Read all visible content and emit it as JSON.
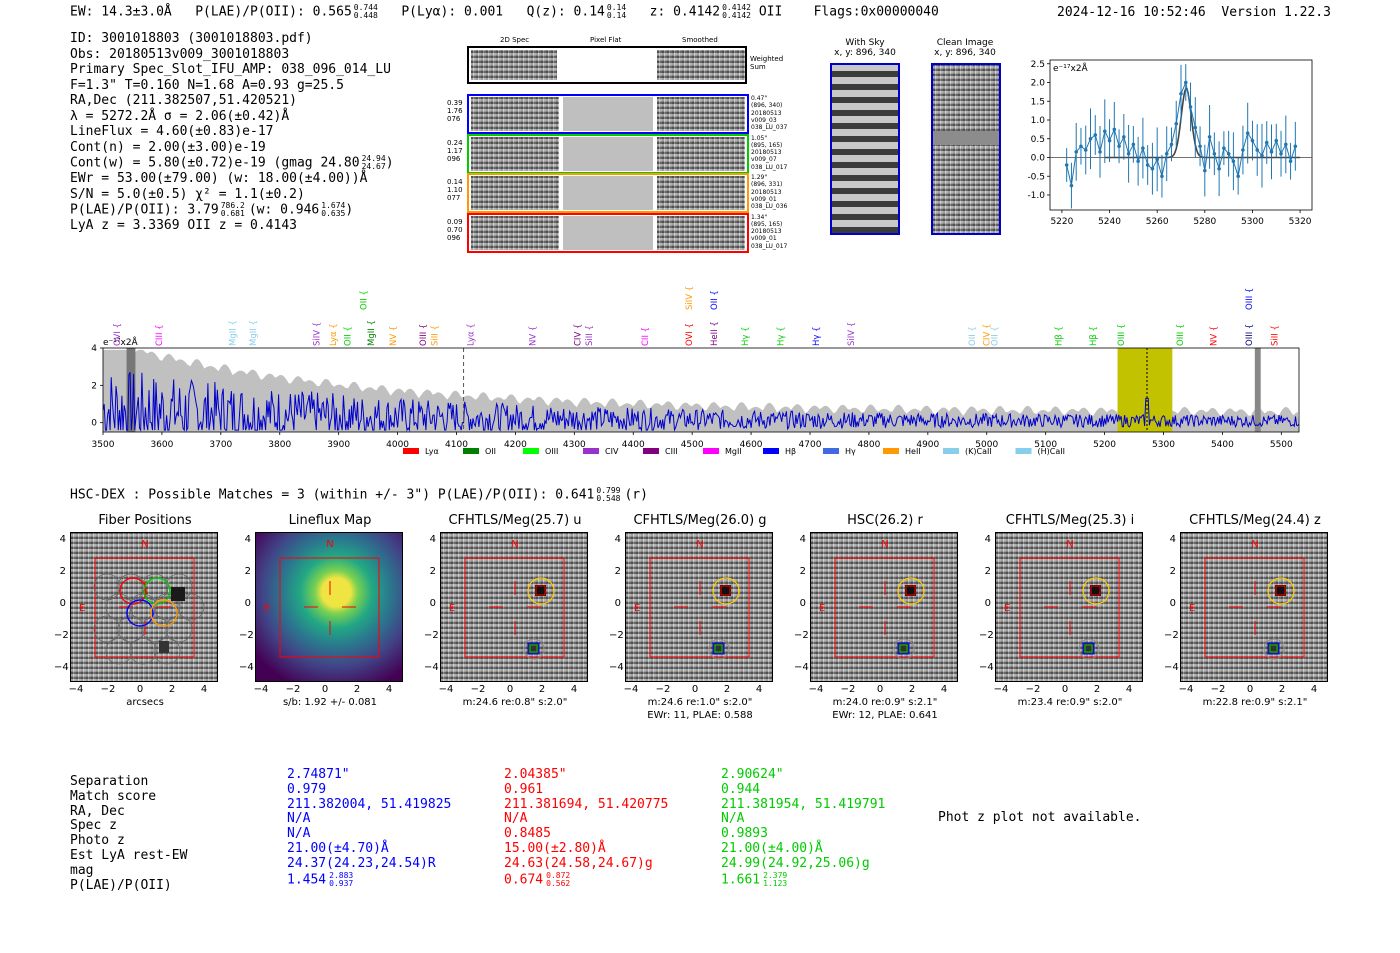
{
  "header": {
    "ew": "EW: 14.3±3.0Å",
    "plae": "P(LAE)/P(OII): 0.565",
    "plae_hi": "0.744",
    "plae_lo": "0.448",
    "plya": "P(Lyα): 0.001",
    "qz": "Q(z): 0.14",
    "qz_hi": "0.14",
    "qz_lo": "0.14",
    "z": "z: 0.4142",
    "z_hi": "0.4142",
    "z_lo": "0.4142",
    "z_line": "OII",
    "flags": "Flags:0x00000040",
    "timestamp": "2024-12-16 10:52:46",
    "version": "Version 1.22.3"
  },
  "info": {
    "l1": "ID: 3001018803 (3001018803.pdf)",
    "l2": "Obs: 20180513v009_3001018803",
    "l3": "Primary Spec_Slot_IFU_AMP: 038_096_014_LU",
    "l4": "F=1.3\"  T=0.160  N=1.68  A=0.93  g=25.5",
    "l5": "RA,Dec (211.382507,51.420521)",
    "l6": "λ = 5272.2Å  σ = 2.06(±0.42)Å",
    "l7": "LineFlux = 4.60(±0.83)e-17",
    "l8": "Cont(n) = 2.00(±3.00)e-19",
    "l9": "Cont(w) = 5.80(±0.72)e-19 (gmag 24.80",
    "l9_hi": "24.94",
    "l9_lo": "24.67",
    "l10": "EWr = 53.00(±79.00) (w: 18.00(±4.00))Å",
    "l11": "S/N = 5.0(±0.5)  χ² = 1.1(±0.2)",
    "l12": "P(LAE)/P(OII): 3.79",
    "l12_hi": "786.2",
    "l12_lo": "0.681",
    "l12b": "(w: 0.946",
    "l12b_hi": "1.674",
    "l12b_lo": "0.635",
    "l13": "LyA z = 3.3369  OII z = 0.4143"
  },
  "spec2d": {
    "headers": [
      "2D Spec",
      "Pixel Flat",
      "Smoothed"
    ],
    "weighted": "Weighted Sum",
    "rows": [
      {
        "left": [
          "0.39",
          "1.76",
          "076"
        ],
        "right": [
          "0.47\"",
          "(896, 340)",
          "20180513",
          "v009_03",
          "038_LU_037"
        ],
        "color": "#0000ff"
      },
      {
        "left": [
          "0.24",
          "1.17",
          "096"
        ],
        "right": [
          "1.05\"",
          "(895, 165)",
          "20180513",
          "v009_07",
          "038_LU_017"
        ],
        "color": "#00cc00"
      },
      {
        "left": [
          "0.14",
          "1.10",
          "077"
        ],
        "right": [
          "1.29\"",
          "(896, 331)",
          "20180513",
          "v009_01",
          "038_LU_036"
        ],
        "color": "#ff9900"
      },
      {
        "left": [
          "0.09",
          "0.70",
          "096"
        ],
        "right": [
          "1.34\"",
          "(895, 165)",
          "20180513",
          "v009_01",
          "038_LU_017"
        ],
        "color": "#ff0000"
      }
    ]
  },
  "sky": {
    "with_sky": "With Sky",
    "with_sky_xy": "x, y: 896, 340",
    "clean": "Clean Image",
    "clean_xy": "x, y: 896, 340"
  },
  "zoom_plot": {
    "unit": "e⁻¹⁷x2Å",
    "yticks": [
      "2.5",
      "2.0",
      "1.5",
      "1.0",
      "0.5",
      "0.0",
      "-0.5",
      "-1.0"
    ],
    "xticks": [
      "5220",
      "5240",
      "5260",
      "5280",
      "5300",
      "5320"
    ],
    "xlim": [
      5215,
      5325
    ],
    "ylim": [
      -1.4,
      2.6
    ],
    "points": [
      [
        5222,
        -0.2
      ],
      [
        5224,
        -0.75
      ],
      [
        5226,
        0.15
      ],
      [
        5228,
        0.3
      ],
      [
        5230,
        0.2
      ],
      [
        5232,
        0.5
      ],
      [
        5234,
        0.6
      ],
      [
        5236,
        0.15
      ],
      [
        5238,
        0.7
      ],
      [
        5240,
        0.45
      ],
      [
        5242,
        0.75
      ],
      [
        5244,
        0.3
      ],
      [
        5246,
        0.55
      ],
      [
        5248,
        0.1
      ],
      [
        5250,
        0.35
      ],
      [
        5252,
        -0.1
      ],
      [
        5254,
        0.25
      ],
      [
        5256,
        -0.2
      ],
      [
        5258,
        -0.3
      ],
      [
        5260,
        -0.05
      ],
      [
        5262,
        -0.5
      ],
      [
        5264,
        0.1
      ],
      [
        5266,
        0.35
      ],
      [
        5268,
        0.9
      ],
      [
        5270,
        1.7
      ],
      [
        5272,
        2.0
      ],
      [
        5274,
        1.35
      ],
      [
        5276,
        0.8
      ],
      [
        5278,
        0.3
      ],
      [
        5280,
        -0.35
      ],
      [
        5282,
        0.55
      ],
      [
        5284,
        0.1
      ],
      [
        5286,
        -0.3
      ],
      [
        5288,
        0.25
      ],
      [
        5290,
        0.1
      ],
      [
        5292,
        -0.1
      ],
      [
        5294,
        -0.5
      ],
      [
        5296,
        0.2
      ],
      [
        5298,
        0.65
      ],
      [
        5300,
        0.45
      ],
      [
        5302,
        0.2
      ],
      [
        5304,
        0.05
      ],
      [
        5306,
        0.4
      ],
      [
        5308,
        0.15
      ],
      [
        5310,
        0.45
      ],
      [
        5312,
        0.1
      ],
      [
        5314,
        0.35
      ],
      [
        5316,
        -0.1
      ],
      [
        5318,
        0.3
      ]
    ],
    "fit_center": 5272.2,
    "fit_sigma": 2.06,
    "fit_amp": 1.85
  },
  "full_spectrum": {
    "unit": "e⁻¹⁷x2Å",
    "yticks": [
      "4",
      "2",
      "0"
    ],
    "xticks": [
      "3500",
      "3600",
      "3700",
      "3800",
      "3900",
      "4000",
      "4100",
      "4200",
      "4300",
      "4400",
      "4500",
      "4600",
      "4700",
      "4800",
      "4900",
      "5000",
      "5100",
      "5200",
      "5300",
      "5400",
      "5500"
    ],
    "xlim": [
      3500,
      5530
    ],
    "ylim": [
      -0.5,
      4
    ],
    "lines": [
      {
        "name": "OVI",
        "wave": 3524,
        "color": "#9932cc",
        "tier": 1
      },
      {
        "name": "CIII",
        "wave": 3595,
        "color": "#ff00ff",
        "tier": 1
      },
      {
        "name": "MgII",
        "wave": 3720,
        "color": "#87ceeb",
        "tier": 1
      },
      {
        "name": "MgII",
        "wave": 3755,
        "color": "#87ceeb",
        "tier": 1
      },
      {
        "name": "SiIV",
        "wave": 3862,
        "color": "#9932cc",
        "tier": 1
      },
      {
        "name": "Lyα",
        "wave": 3890,
        "color": "#ff9900",
        "tier": 1
      },
      {
        "name": "OII",
        "wave": 3915,
        "color": "#00cc00",
        "tier": 1
      },
      {
        "name": "OII",
        "wave": 3942,
        "color": "#00cc00",
        "tier": 2
      },
      {
        "name": "MgII",
        "wave": 3955,
        "color": "#008000",
        "tier": 1
      },
      {
        "name": "NV",
        "wave": 3992,
        "color": "#ff9900",
        "tier": 1
      },
      {
        "name": "OIII",
        "wave": 4043,
        "color": "#800080",
        "tier": 1
      },
      {
        "name": "SiII",
        "wave": 4063,
        "color": "#ff9900",
        "tier": 1
      },
      {
        "name": "Lyα",
        "wave": 4124,
        "color": "#9932cc",
        "tier": 1
      },
      {
        "name": "NV",
        "wave": 4229,
        "color": "#9932cc",
        "tier": 1
      },
      {
        "name": "CIV",
        "wave": 4305,
        "color": "#800080",
        "tier": 1
      },
      {
        "name": "SiII",
        "wave": 4325,
        "color": "#9932cc",
        "tier": 1
      },
      {
        "name": "CII",
        "wave": 4420,
        "color": "#ff00ff",
        "tier": 1
      },
      {
        "name": "OVI",
        "wave": 4495,
        "color": "#ff0000",
        "tier": 1
      },
      {
        "name": "SiIV",
        "wave": 4495,
        "color": "#ff9900",
        "tier": 2
      },
      {
        "name": "HeII",
        "wave": 4537,
        "color": "#800080",
        "tier": 1
      },
      {
        "name": "OII",
        "wave": 4537,
        "color": "#0000ff",
        "tier": 2
      },
      {
        "name": "Hγ",
        "wave": 4590,
        "color": "#00cc00",
        "tier": 1
      },
      {
        "name": "Hγ",
        "wave": 4650,
        "color": "#00cc00",
        "tier": 1
      },
      {
        "name": "Hγ",
        "wave": 4710,
        "color": "#0000ff",
        "tier": 1
      },
      {
        "name": "SiIV",
        "wave": 4770,
        "color": "#9932cc",
        "tier": 1
      },
      {
        "name": "OII",
        "wave": 4975,
        "color": "#87ceeb",
        "tier": 1
      },
      {
        "name": "CIV",
        "wave": 5000,
        "color": "#ff9900",
        "tier": 1
      },
      {
        "name": "OII",
        "wave": 5013,
        "color": "#87ceeb",
        "tier": 1
      },
      {
        "name": "Hβ",
        "wave": 5122,
        "color": "#00cc00",
        "tier": 1
      },
      {
        "name": "Hβ",
        "wave": 5180,
        "color": "#00cc00",
        "tier": 1
      },
      {
        "name": "OIII",
        "wave": 5228,
        "color": "#00cc00",
        "tier": 1
      },
      {
        "name": "OIII",
        "wave": 5328,
        "color": "#00cc00",
        "tier": 1
      },
      {
        "name": "NV",
        "wave": 5385,
        "color": "#ff0000",
        "tier": 1
      },
      {
        "name": "OIII",
        "wave": 5445,
        "color": "#000080",
        "tier": 1
      },
      {
        "name": "OIII",
        "wave": 5445,
        "color": "#0000ff",
        "tier": 2
      },
      {
        "name": "SiII",
        "wave": 5488,
        "color": "#ff0000",
        "tier": 1
      }
    ],
    "band_start": 5222,
    "band_end": 5315,
    "dashed_line": 4112,
    "dotted_line": 5272,
    "legend": [
      {
        "label": "Lyα",
        "color": "#ff0000"
      },
      {
        "label": "OII",
        "color": "#008000"
      },
      {
        "label": "OIII",
        "color": "#00ff00"
      },
      {
        "label": "CIV",
        "color": "#9932cc"
      },
      {
        "label": "CIII",
        "color": "#800080"
      },
      {
        "label": "MgII",
        "color": "#ff00ff"
      },
      {
        "label": "Hβ",
        "color": "#0000ff"
      },
      {
        "label": "Hγ",
        "color": "#4169e1"
      },
      {
        "label": "HeII",
        "color": "#ff9900"
      },
      {
        "label": "(K)CaII",
        "color": "#87ceeb"
      },
      {
        "label": "(H)CaII",
        "color": "#87ceeb"
      }
    ]
  },
  "hsc": {
    "title": "HSC-DEX : Possible Matches = 3 (within +/- 3\")  P(LAE)/P(OII): 0.641",
    "hi": "0.799",
    "lo": "0.548",
    "band": "(r)"
  },
  "cutouts": [
    {
      "title": "Fiber Positions",
      "xlabel": "arcsecs",
      "sub": ""
    },
    {
      "title": "Lineflux Map",
      "xlabel": "s/b: 1.92 +/- 0.081",
      "sub": ""
    },
    {
      "title": "CFHTLS/Meg(25.7) u",
      "xlabel": "m:24.6  re:0.8\"  s:2.0\"",
      "sub": ""
    },
    {
      "title": "CFHTLS/Meg(26.0) g",
      "xlabel": "m:24.6  re:1.0\"  s:2.0\"",
      "sub": "EWr: 11, PLAE: 0.588"
    },
    {
      "title": "HSC(26.2) r",
      "xlabel": "m:24.0  re:0.9\"  s:2.1\"",
      "sub": "EWr: 12, PLAE: 0.641"
    },
    {
      "title": "CFHTLS/Meg(25.3) i",
      "xlabel": "m:23.4  re:0.9\"  s:2.0\"",
      "sub": ""
    },
    {
      "title": "CFHTLS/Meg(24.4) z",
      "xlabel": "m:22.8  re:0.9\"  s:2.1\"",
      "sub": ""
    }
  ],
  "cutout_axes": {
    "yticks": [
      "4",
      "2",
      "0",
      "−2",
      "−4"
    ],
    "xticks": [
      "−4",
      "−2",
      "0",
      "2",
      "4"
    ],
    "north": "N",
    "east": "E"
  },
  "matches": {
    "labels": [
      "Separation",
      "Match score",
      "RA, Dec",
      "Spec z",
      "Photo z",
      "Est LyA rest-EW",
      "mag",
      "P(LAE)/P(OII)"
    ],
    "columns": [
      {
        "color": "#0000ff",
        "sep": "2.74871\"",
        "score": "0.979",
        "radec": "211.382004, 51.419825",
        "specz": "N/A",
        "photoz": "N/A",
        "ew": "21.00(±4.70)Å",
        "mag": "24.37(24.23,24.54)R",
        "plae": "1.454",
        "plae_hi": "2.883",
        "plae_lo": "0.937"
      },
      {
        "color": "#ff0000",
        "sep": "2.04385\"",
        "score": "0.961",
        "radec": "211.381694, 51.420775",
        "specz": "N/A",
        "photoz": "0.8485",
        "ew": "15.00(±2.80)Å",
        "mag": "24.63(24.58,24.67)g",
        "plae": "0.674",
        "plae_hi": "0.872",
        "plae_lo": "0.562"
      },
      {
        "color": "#00cc00",
        "sep": "2.90624\"",
        "score": "0.944",
        "radec": "211.381954, 51.419791",
        "specz": "N/A",
        "photoz": "0.9893",
        "ew": "21.00(±4.00)Å",
        "mag": "24.99(24.92,25.06)g",
        "plae": "1.661",
        "plae_hi": "2.379",
        "plae_lo": "1.123"
      }
    ],
    "photz_note": "Phot z plot not available."
  }
}
